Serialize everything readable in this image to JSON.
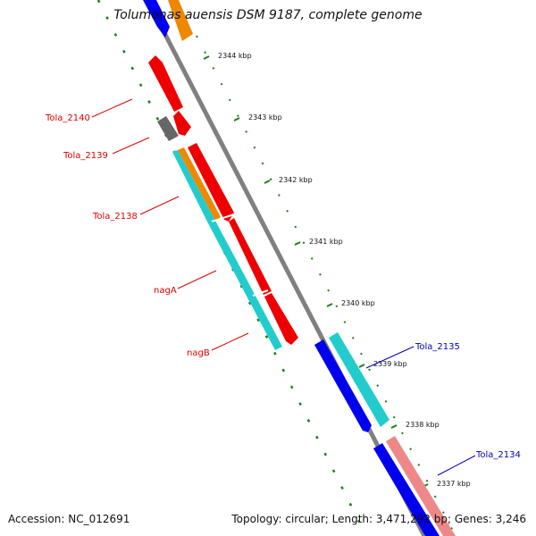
{
  "title": "Tolumonas auensis DSM 9187, complete genome",
  "accession": "Accession: NC_012691",
  "summary": "Topology: circular; Length: 3,471,292 bp; Genes: 3,246",
  "colors": {
    "backbone": "#808080",
    "gc_ticks": "#1a7f1a",
    "red_gene": "#ee0000",
    "cyan_gene": "#22cccc",
    "blue_gene": "#0000ee",
    "orange_gene": "#ee8800",
    "gray_gene": "#666666",
    "pink_gene": "#ee8888",
    "left_labels": "#dd0000",
    "right_labels": "#0000bb"
  },
  "ticks": [
    "2344 kbp",
    "2343 kbp",
    "2342 kbp",
    "2341 kbp",
    "2340 kbp",
    "2339 kbp",
    "2338 kbp",
    "2337 kbp"
  ],
  "gene_labels_left": [
    "Tola_2140",
    "Tola_2139",
    "Tola_2138",
    "nagA",
    "nagB"
  ],
  "gene_labels_right": [
    "Tola_2135",
    "Tola_2134"
  ]
}
